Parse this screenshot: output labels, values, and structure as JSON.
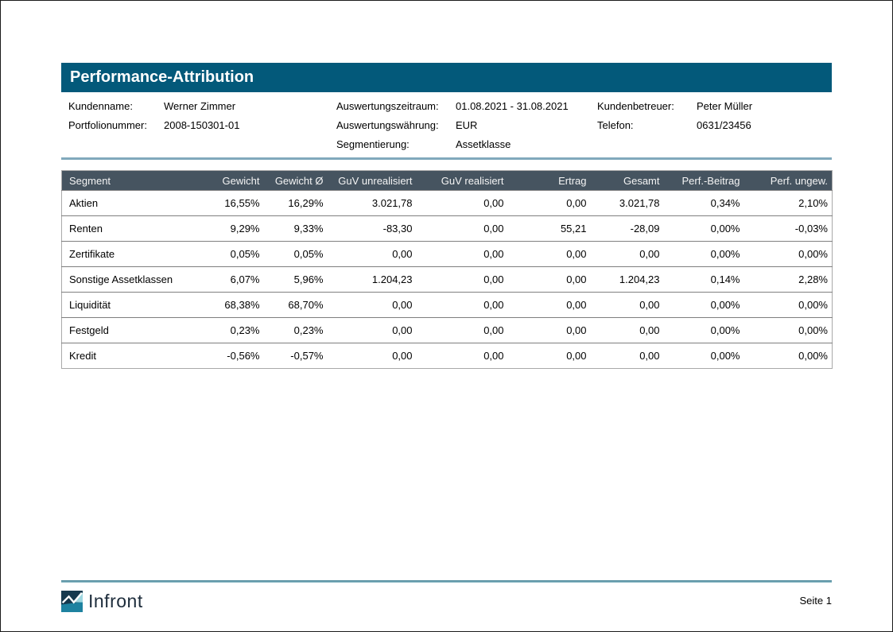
{
  "page": {
    "title": "Performance-Attribution",
    "page_number": "Seite 1",
    "logo_text": "Infront"
  },
  "meta": {
    "col1": [
      {
        "label": "Kundenname:",
        "value": "Werner Zimmer"
      },
      {
        "label": "Portfolionummer:",
        "value": "2008-150301-01"
      }
    ],
    "col2": [
      {
        "label": "Auswertungszeitraum:",
        "value": "01.08.2021 - 31.08.2021"
      },
      {
        "label": "Auswertungswährung:",
        "value": "EUR"
      },
      {
        "label": "Segmentierung:",
        "value": "Assetklasse"
      }
    ],
    "col3": [
      {
        "label": "Kundenbetreuer:",
        "value": "Peter Müller"
      },
      {
        "label": "Telefon:",
        "value": "0631/23456"
      }
    ]
  },
  "table": {
    "headers": [
      "Segment",
      "Gewicht",
      "Gewicht Ø",
      "GuV unrealisiert",
      "GuV realisiert",
      "Ertrag",
      "Gesamt",
      "Perf.-Beitrag",
      "Perf. ungew."
    ],
    "rows": [
      [
        "Aktien",
        "16,55%",
        "16,29%",
        "3.021,78",
        "0,00",
        "0,00",
        "3.021,78",
        "0,34%",
        "2,10%"
      ],
      [
        "Renten",
        "9,29%",
        "9,33%",
        "-83,30",
        "0,00",
        "55,21",
        "-28,09",
        "0,00%",
        "-0,03%"
      ],
      [
        "Zertifikate",
        "0,05%",
        "0,05%",
        "0,00",
        "0,00",
        "0,00",
        "0,00",
        "0,00%",
        "0,00%"
      ],
      [
        "Sonstige Assetklassen",
        "6,07%",
        "5,96%",
        "1.204,23",
        "0,00",
        "0,00",
        "1.204,23",
        "0,14%",
        "2,28%"
      ],
      [
        "Liquidität",
        "68,38%",
        "68,70%",
        "0,00",
        "0,00",
        "0,00",
        "0,00",
        "0,00%",
        "0,00%"
      ],
      [
        "Festgeld",
        "0,23%",
        "0,23%",
        "0,00",
        "0,00",
        "0,00",
        "0,00",
        "0,00%",
        "0,00%"
      ],
      [
        "Kredit",
        "-0,56%",
        "-0,57%",
        "0,00",
        "0,00",
        "0,00",
        "0,00",
        "0,00%",
        "0,00%"
      ]
    ]
  },
  "colors": {
    "title_bar": "#03597a",
    "table_header": "#465460",
    "divider_light": "#81a9bc",
    "divider_footer_top": "#2d7388",
    "divider_footer_bottom": "#accfd8",
    "logo_dark": "#16394e",
    "logo_teal": "#1e82a0",
    "logo_light": "#9ed7e0"
  }
}
